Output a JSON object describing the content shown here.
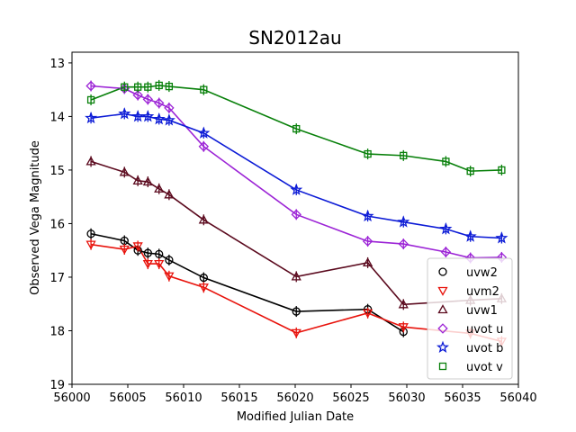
{
  "chart_data": {
    "type": "line",
    "title": "SN2012au",
    "xlabel": "Modified Julian Date",
    "ylabel": "Observed Vega Magnitude",
    "xlim": [
      56000,
      56040
    ],
    "ylim": [
      19,
      12.8
    ],
    "y_inverted": true,
    "xticks": [
      56000,
      56005,
      56010,
      56015,
      56020,
      56025,
      56030,
      56035,
      56040
    ],
    "yticks": [
      13,
      14,
      15,
      16,
      17,
      18,
      19
    ],
    "grid": false,
    "legend": "lower-right",
    "series": [
      {
        "name": "uvw2",
        "marker": "circle",
        "color": "#000000",
        "x": [
          56001.7,
          56004.7,
          56005.9,
          56006.8,
          56007.8,
          56008.7,
          56011.8,
          56020.1,
          56026.5,
          56029.7
        ],
        "y": [
          16.19,
          16.32,
          16.5,
          16.55,
          16.57,
          16.68,
          17.01,
          17.64,
          17.6,
          18.02
        ]
      },
      {
        "name": "uvm2",
        "marker": "triangle-down",
        "color": "#e8130c",
        "x": [
          56001.7,
          56004.7,
          56005.9,
          56006.8,
          56007.8,
          56008.7,
          56011.8,
          56020.1,
          56026.5,
          56029.7,
          56035.7,
          56038.5
        ],
        "y": [
          16.39,
          16.48,
          16.42,
          16.75,
          16.75,
          16.98,
          17.19,
          18.04,
          17.67,
          17.93,
          18.05,
          18.2
        ]
      },
      {
        "name": "uvw1",
        "marker": "triangle-up",
        "color": "#5b0a1e",
        "x": [
          56001.7,
          56004.7,
          56005.9,
          56006.8,
          56007.8,
          56008.7,
          56011.8,
          56020.1,
          56026.5,
          56029.7,
          56035.7,
          56038.5
        ],
        "y": [
          14.84,
          15.04,
          15.2,
          15.22,
          15.35,
          15.46,
          15.93,
          16.99,
          16.73,
          17.51,
          17.43,
          17.4
        ]
      },
      {
        "name": "uvot u",
        "marker": "diamond",
        "color": "#9c24d6",
        "x": [
          56001.7,
          56004.7,
          56005.9,
          56006.8,
          56007.8,
          56008.7,
          56011.8,
          56020.1,
          56026.5,
          56029.7,
          56033.5,
          56035.7,
          56038.5
        ],
        "y": [
          13.43,
          13.48,
          13.6,
          13.68,
          13.75,
          13.84,
          14.56,
          15.83,
          16.33,
          16.38,
          16.53,
          16.64,
          16.63
        ]
      },
      {
        "name": "uvot b",
        "marker": "star",
        "color": "#0c1bd6",
        "x": [
          56001.7,
          56004.7,
          56005.9,
          56006.8,
          56007.8,
          56008.7,
          56011.8,
          56020.1,
          56026.5,
          56029.7,
          56033.5,
          56035.7,
          56038.5
        ],
        "y": [
          14.03,
          13.95,
          14.0,
          14.0,
          14.05,
          14.07,
          14.31,
          15.37,
          15.86,
          15.97,
          16.1,
          16.24,
          16.27
        ]
      },
      {
        "name": "uvot v",
        "marker": "square",
        "color": "#08800a",
        "x": [
          56001.7,
          56004.7,
          56005.9,
          56006.8,
          56007.8,
          56008.7,
          56011.8,
          56020.1,
          56026.5,
          56029.7,
          56033.5,
          56035.7,
          56038.5
        ],
        "y": [
          13.69,
          13.45,
          13.45,
          13.45,
          13.42,
          13.44,
          13.5,
          14.23,
          14.7,
          14.73,
          14.84,
          15.02,
          15.0
        ]
      }
    ]
  }
}
